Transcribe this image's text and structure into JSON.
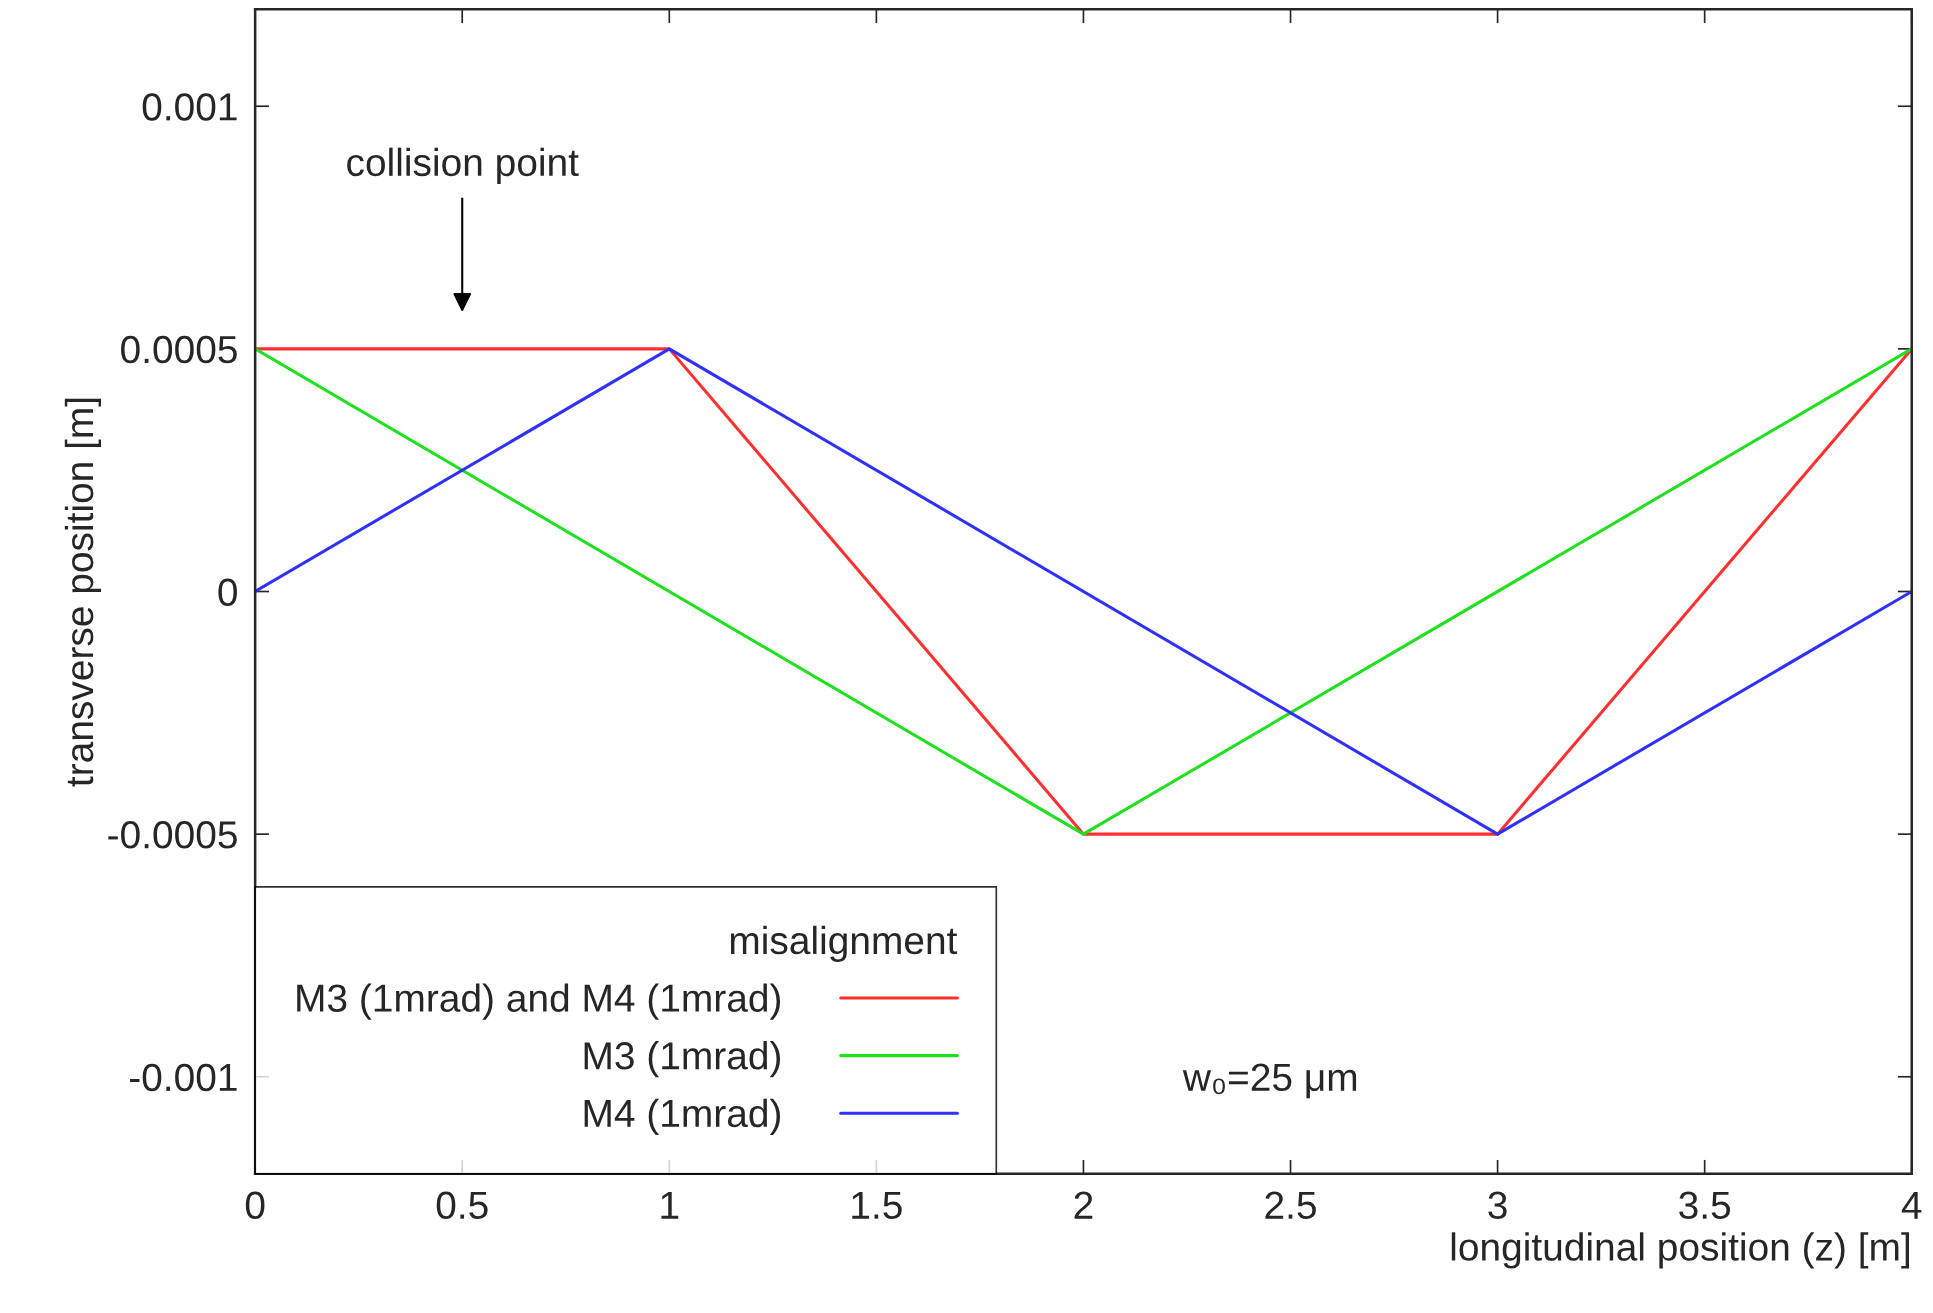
{
  "chart_data": {
    "type": "line",
    "xlabel": "longitudinal position (z) [m]",
    "ylabel": "transverse position [m]",
    "legend_title": "misalignment",
    "series": [
      {
        "name": "M3 (1mrad) and M4 (1mrad)",
        "color": "#ff3030",
        "x": [
          0,
          1,
          2,
          3,
          4
        ],
        "values": [
          0.0005,
          0.0005,
          -0.0005,
          -0.0005,
          0.0005
        ]
      },
      {
        "name": "M3 (1mrad)",
        "color": "#20e020",
        "x": [
          0,
          2,
          4
        ],
        "values": [
          0.0005,
          -0.0005,
          0.0005
        ]
      },
      {
        "name": "M4 (1mrad)",
        "color": "#3030ff",
        "x": [
          0,
          1,
          3,
          4
        ],
        "values": [
          0,
          0.0005,
          -0.0005,
          0
        ]
      }
    ],
    "xlim": [
      0,
      4
    ],
    "xticks": [
      0,
      0.5,
      1,
      1.5,
      2,
      2.5,
      3,
      3.5,
      4
    ],
    "ylim": [
      -0.0012,
      0.0012
    ],
    "yticks": [
      -0.001,
      -0.0005,
      0,
      0.0005,
      0.001
    ],
    "annotations": [
      "collision point",
      "w₀=25 μm"
    ],
    "grid": false,
    "legend": "bottom left",
    "marker": "none",
    "line_style": "solid"
  }
}
